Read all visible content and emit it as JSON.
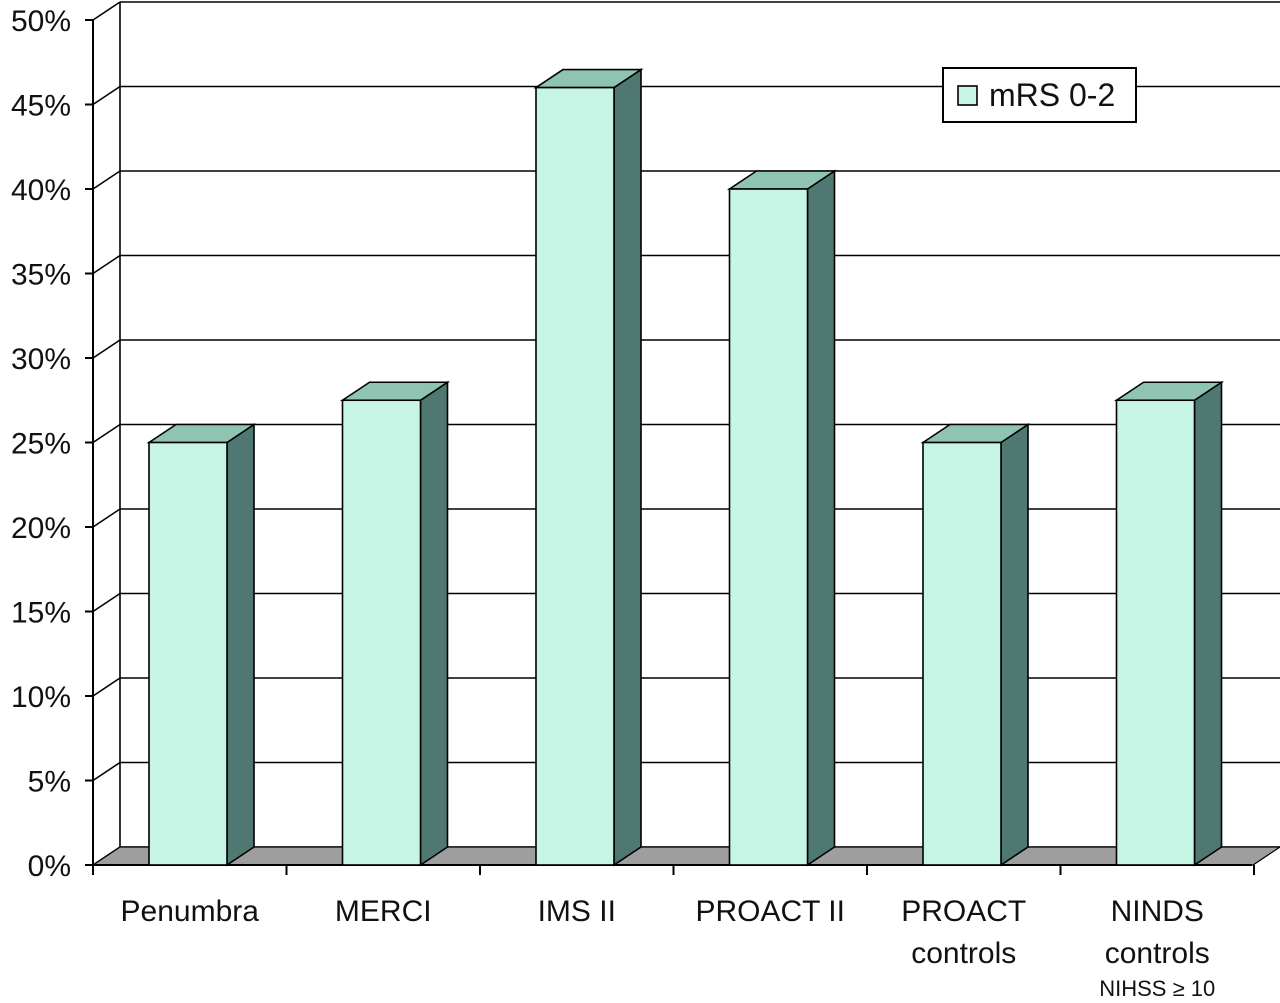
{
  "chart_data": {
    "type": "bar",
    "style": "3d-column",
    "categories": [
      [
        "Penumbra"
      ],
      [
        "MERCI"
      ],
      [
        "IMS II"
      ],
      [
        "PROACT II"
      ],
      [
        "PROACT",
        "controls"
      ],
      [
        "NINDS",
        "controls"
      ]
    ],
    "category_notes": [
      "",
      "",
      "",
      "",
      "",
      "NIHSS ≥ 10"
    ],
    "series": [
      {
        "name": "mRS 0-2",
        "values": [
          25,
          27.5,
          46,
          40,
          25,
          27.5
        ]
      }
    ],
    "ylim": [
      0,
      50
    ],
    "yticks": [
      0,
      5,
      10,
      15,
      20,
      25,
      30,
      35,
      40,
      45,
      50
    ],
    "ytick_format": "percent",
    "grid": true,
    "legend": "top-right",
    "colors": {
      "bar_front": "#c6f5e6",
      "bar_top": "#8fc4b2",
      "bar_side": "#507872",
      "floor": "#9e9e9e",
      "wall": "#ffffff",
      "axis": "#000000"
    }
  }
}
